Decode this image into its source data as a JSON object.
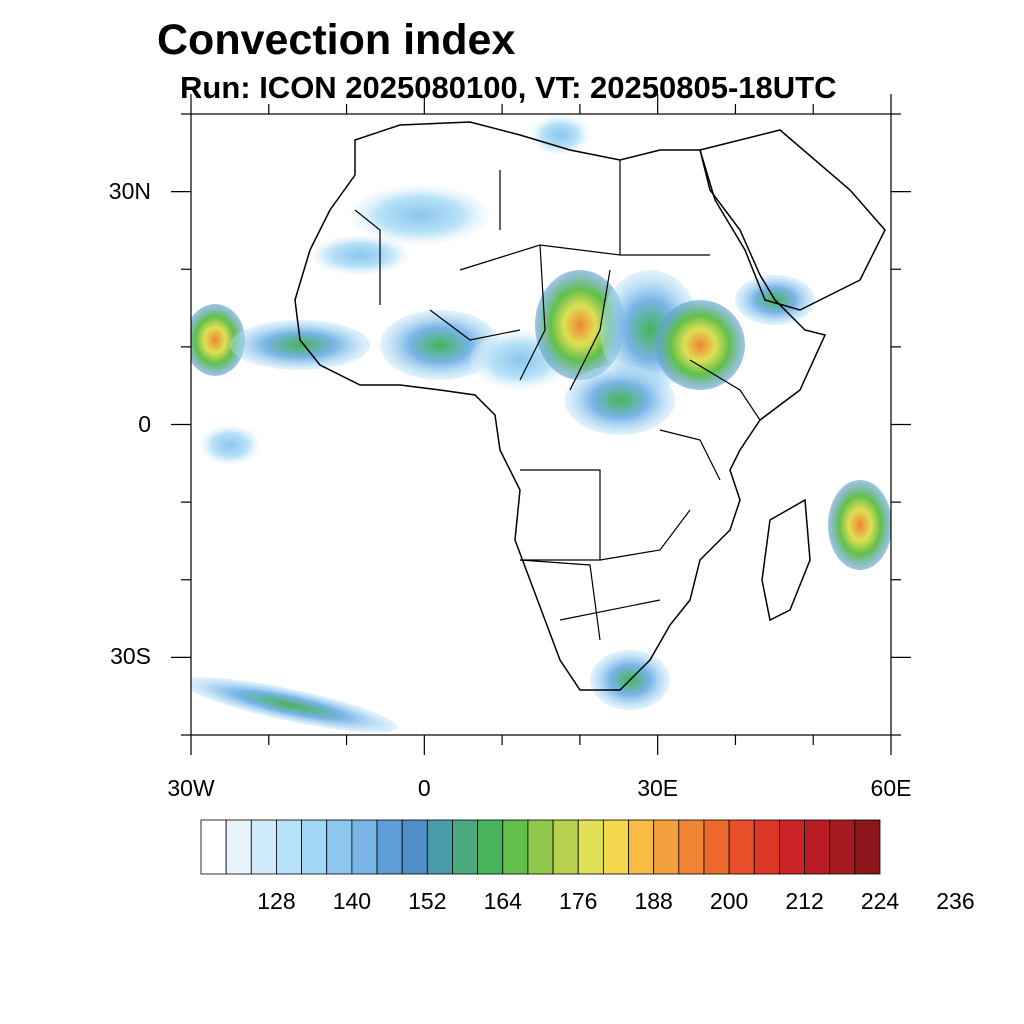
{
  "title": "Convection index",
  "subtitle": "Run: ICON 2025080100,  VT: 20250805-18UTC",
  "map": {
    "lon_range": [
      -30,
      60
    ],
    "lat_range": [
      -40,
      40
    ],
    "y_tick_labels": [
      {
        "lat": 30,
        "label": "30N"
      },
      {
        "lat": 0,
        "label": "0"
      },
      {
        "lat": -30,
        "label": "30S"
      }
    ],
    "x_tick_labels": [
      {
        "lon": -30,
        "label": "30W"
      },
      {
        "lon": 0,
        "label": "0"
      },
      {
        "lon": 30,
        "label": "30E"
      },
      {
        "lon": 60,
        "label": "60E"
      }
    ],
    "minor_tick_step_deg": 10
  },
  "colorbar": {
    "colors": [
      "#ffffff",
      "#e8f4fc",
      "#d0ebf9",
      "#b8e2f7",
      "#a0d8f5",
      "#8cc6ee",
      "#78b4e6",
      "#5e9ed9",
      "#4f8ec9",
      "#4a9ca8",
      "#4aa97e",
      "#47b35a",
      "#62bf4a",
      "#8fc84c",
      "#b8d04f",
      "#dfe055",
      "#f4d94e",
      "#f5bd45",
      "#f3a03c",
      "#ef8534",
      "#ec6a2d",
      "#e64f29",
      "#dc3627",
      "#cc2426",
      "#b91c24",
      "#a61a21",
      "#8c161c"
    ],
    "tick_labels": [
      "128",
      "140",
      "152",
      "164",
      "176",
      "188",
      "200",
      "212",
      "224",
      "236"
    ]
  }
}
